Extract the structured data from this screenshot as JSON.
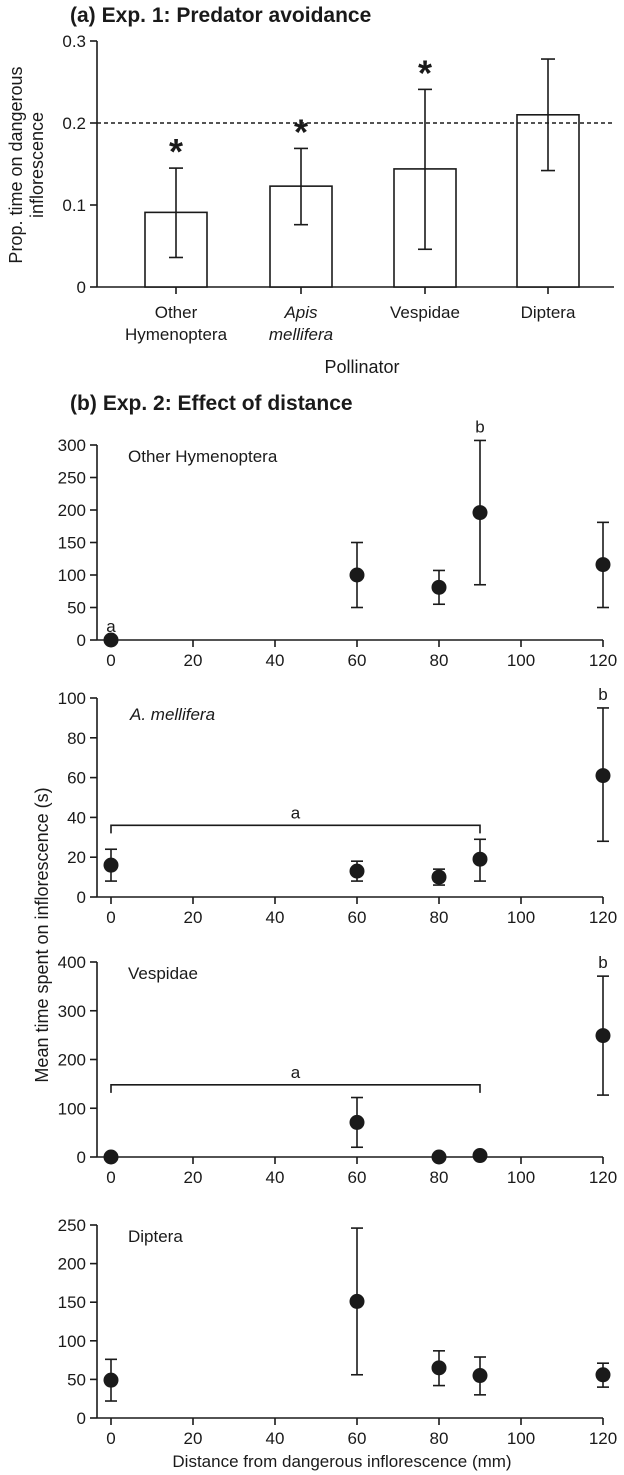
{
  "chart_data": [
    {
      "panel": "(a)",
      "title": "Exp. 1: Predator avoidance",
      "type": "bar",
      "categories": [
        [
          "Other",
          "Hymenoptera"
        ],
        [
          "Apis",
          "mellifera"
        ],
        [
          "Vespidae"
        ],
        [
          "Diptera"
        ]
      ],
      "italic_categories": [
        false,
        true,
        false,
        false
      ],
      "values": [
        0.091,
        0.123,
        0.144,
        0.21
      ],
      "error_low": [
        0.036,
        0.076,
        0.046,
        0.142
      ],
      "error_high": [
        0.145,
        0.169,
        0.241,
        0.278
      ],
      "significant": [
        "*",
        "*",
        "*",
        ""
      ],
      "reference_line": 0.2,
      "ylim": [
        0,
        0.3
      ],
      "yticks": [
        0,
        0.1,
        0.2,
        0.3
      ],
      "ytick_labels": [
        "0",
        "0.1",
        "0.2",
        "0.3"
      ],
      "xlabel": "Pollinator",
      "ylabel": [
        "Prop. time on dangerous",
        "inflorescence"
      ]
    },
    {
      "panel": "(b)",
      "title": "Exp. 2: Effect of distance",
      "type": "scatter",
      "shared_xlabel": "Distance from dangerous inflorescence (mm)",
      "shared_ylabel": "Mean time spent on inflorescence (s)",
      "xlim": [
        0,
        120
      ],
      "xticks": [
        0,
        20,
        40,
        60,
        80,
        100,
        120
      ],
      "subplots": [
        {
          "name": "Other Hymenoptera",
          "italic": false,
          "x": [
            0,
            60,
            80,
            90,
            120
          ],
          "y": [
            0,
            100,
            81,
            196,
            116
          ],
          "error_low": [
            0,
            50,
            55,
            85,
            50
          ],
          "error_high": [
            0,
            150,
            107,
            307,
            181
          ],
          "ylim": [
            0,
            300
          ],
          "yticks": [
            0,
            50,
            100,
            150,
            200,
            250,
            300
          ],
          "letters": [
            {
              "text": "a",
              "x": 0,
              "y": 0
            },
            {
              "text": "b",
              "x": 90,
              "y": 307
            }
          ]
        },
        {
          "name": "A. mellifera",
          "italic": true,
          "x": [
            0,
            60,
            80,
            90,
            120
          ],
          "y": [
            16,
            13,
            10,
            19,
            61
          ],
          "error_low": [
            8,
            8,
            6,
            8,
            28
          ],
          "error_high": [
            24,
            18,
            14,
            29,
            95
          ],
          "ylim": [
            0,
            100
          ],
          "yticks": [
            0,
            20,
            40,
            60,
            80,
            100
          ],
          "letters": [
            {
              "text": "b",
              "x": 120,
              "y": 95
            }
          ],
          "bracket": {
            "label": "a",
            "x_from": 0,
            "x_to": 90,
            "y": 36
          }
        },
        {
          "name": "Vespidae",
          "italic": false,
          "x": [
            0,
            60,
            80,
            90,
            120
          ],
          "y": [
            0,
            71,
            0,
            3,
            249
          ],
          "error_low": [
            0,
            20,
            0,
            3,
            127
          ],
          "error_high": [
            0,
            122,
            0,
            3,
            371
          ],
          "ylim": [
            0,
            400
          ],
          "yticks": [
            0,
            100,
            200,
            300,
            400
          ],
          "letters": [
            {
              "text": "b",
              "x": 120,
              "y": 371
            }
          ],
          "bracket": {
            "label": "a",
            "x_from": 0,
            "x_to": 90,
            "y": 148
          }
        },
        {
          "name": "Diptera",
          "italic": false,
          "x": [
            0,
            60,
            80,
            90,
            120
          ],
          "y": [
            49,
            151,
            65,
            55,
            56
          ],
          "error_low": [
            22,
            56,
            42,
            30,
            40
          ],
          "error_high": [
            76,
            246,
            87,
            79,
            71
          ],
          "ylim": [
            0,
            250
          ],
          "yticks": [
            0,
            50,
            100,
            150,
            200,
            250
          ],
          "letters": []
        }
      ]
    }
  ]
}
